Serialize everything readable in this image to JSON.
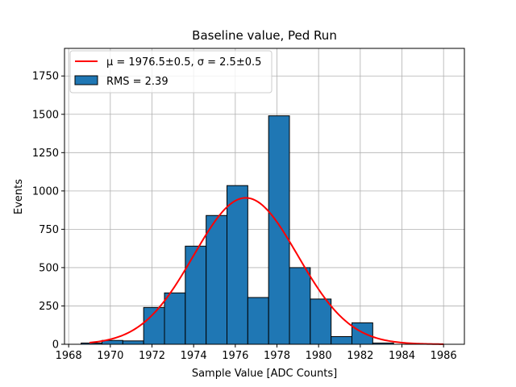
{
  "chart_data": {
    "type": "bar",
    "title": "Baseline value, Ped Run",
    "xlabel": "Sample Value [ADC Counts]",
    "ylabel": "Events",
    "xlim": [
      1967.8,
      1987.0
    ],
    "ylim": [
      0,
      1930
    ],
    "grid": true,
    "legend_position": "top-left",
    "x_ticks": [
      1968,
      1970,
      1972,
      1974,
      1976,
      1978,
      1980,
      1982,
      1984,
      1986
    ],
    "x_tick_labels": [
      "1968",
      "1970",
      "1972",
      "1974",
      "1976",
      "1978",
      "1980",
      "1982",
      "1984",
      "1986"
    ],
    "y_ticks": [
      0,
      250,
      500,
      750,
      1000,
      1250,
      1500,
      1750
    ],
    "y_tick_labels": [
      "0",
      "250",
      "500",
      "750",
      "1000",
      "1250",
      "1500",
      "1750"
    ],
    "histogram": {
      "name": "RMS = 2.39",
      "color": "#1f77b4",
      "edge_color": "#000000",
      "bin_width": 1.0,
      "bin_edges": [
        1968.6,
        1969.6,
        1970.6,
        1971.6,
        1972.6,
        1973.6,
        1974.6,
        1975.6,
        1976.6,
        1977.6,
        1978.6,
        1979.6,
        1980.6,
        1981.6,
        1982.6,
        1983.6,
        1984.6,
        1985.6,
        1986.6
      ],
      "counts": [
        8,
        25,
        22,
        240,
        335,
        640,
        840,
        1035,
        305,
        1490,
        500,
        295,
        50,
        140,
        8,
        0,
        0,
        0
      ]
    },
    "fit": {
      "name": "μ = 1976.5±0.5, σ = 2.5±0.5",
      "type": "gaussian",
      "color": "#ff0000",
      "mu": 1976.5,
      "sigma": 2.5,
      "amplitude": 955,
      "x_range": [
        1969.0,
        1986.0
      ]
    },
    "legend": {
      "fit_label": "μ = 1976.5±0.5, σ = 2.5±0.5",
      "hist_label": "RMS = 2.39"
    }
  }
}
